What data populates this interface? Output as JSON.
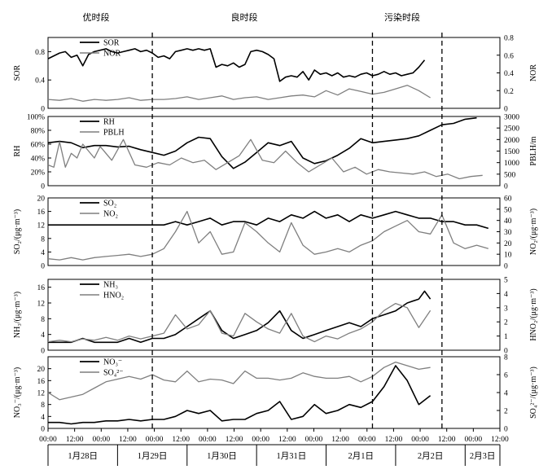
{
  "periods": [
    "优时段",
    "良时段",
    "污染时段"
  ],
  "x_axis": {
    "tick_labels": [
      "00:00",
      "12:00",
      "00:00",
      "12:00",
      "00:00",
      "12:00",
      "00:00",
      "12:00",
      "00:00",
      "12:00",
      "00:00",
      "12:00",
      "00:00",
      "12:00",
      "00:00",
      "12:00",
      "00:00",
      "12:00"
    ],
    "dates": [
      "1月28日",
      "1月29日",
      "1月30日",
      "1月31日",
      "2月1日",
      "2月2日",
      "2月3日"
    ]
  },
  "divider_lines_hours": [
    36,
    112,
    136
  ],
  "colors": {
    "series_dark": "#000000",
    "series_gray": "#7f7f7f",
    "frame": "#000000"
  },
  "chart_data": [
    {
      "type": "line",
      "x_unit": "hours since 2020-01-28 00:00",
      "left_ylabel": "SOR",
      "right_ylabel": "NOR",
      "left_ylim": [
        0,
        1.0
      ],
      "right_ylim": [
        0,
        0.8
      ],
      "left_ticks": [
        "0",
        "0.4",
        "0.8"
      ],
      "right_ticks": [
        "0",
        "0.2",
        "0.4",
        "0.6",
        "0.8"
      ],
      "legend": [
        "SOR",
        "NOR"
      ],
      "series": [
        {
          "name": "SOR",
          "axis": "left",
          "color": "#000000",
          "x": [
            0,
            2,
            4,
            6,
            8,
            10,
            12,
            14,
            16,
            18,
            20,
            22,
            24,
            26,
            28,
            30,
            32,
            34,
            36,
            38,
            40,
            42,
            44,
            46,
            48,
            50,
            52,
            54,
            56,
            58,
            60,
            62,
            64,
            66,
            68,
            70,
            72,
            74,
            76,
            78,
            80,
            82,
            84,
            86,
            88,
            90,
            92,
            94,
            96,
            98,
            100,
            102,
            104,
            106,
            108,
            110,
            112,
            114,
            116,
            118,
            120,
            122,
            124,
            126,
            128,
            130
          ],
          "y": [
            0.7,
            0.74,
            0.78,
            0.8,
            0.72,
            0.75,
            0.6,
            0.76,
            0.8,
            0.82,
            0.84,
            0.8,
            0.78,
            0.8,
            0.82,
            0.84,
            0.8,
            0.82,
            0.78,
            0.72,
            0.74,
            0.7,
            0.8,
            0.82,
            0.84,
            0.82,
            0.84,
            0.82,
            0.84,
            0.58,
            0.62,
            0.6,
            0.64,
            0.58,
            0.62,
            0.8,
            0.82,
            0.8,
            0.76,
            0.7,
            0.38,
            0.44,
            0.46,
            0.44,
            0.52,
            0.4,
            0.54,
            0.48,
            0.5,
            0.46,
            0.5,
            0.44,
            0.46,
            0.44,
            0.48,
            0.5,
            0.46,
            0.48,
            0.52,
            0.48,
            0.5,
            0.46,
            0.48,
            0.5,
            0.58,
            0.68
          ]
        },
        {
          "name": "NOR",
          "axis": "right",
          "color": "#7f7f7f",
          "x": [
            0,
            4,
            8,
            12,
            16,
            20,
            24,
            28,
            32,
            36,
            40,
            44,
            48,
            52,
            56,
            60,
            64,
            68,
            72,
            76,
            80,
            84,
            88,
            92,
            96,
            100,
            104,
            108,
            112,
            116,
            120,
            124,
            128,
            132
          ],
          "y": [
            0.1,
            0.09,
            0.11,
            0.08,
            0.1,
            0.09,
            0.1,
            0.12,
            0.09,
            0.1,
            0.1,
            0.11,
            0.13,
            0.1,
            0.12,
            0.14,
            0.1,
            0.12,
            0.13,
            0.1,
            0.12,
            0.14,
            0.15,
            0.13,
            0.2,
            0.15,
            0.22,
            0.19,
            0.16,
            0.18,
            0.22,
            0.26,
            0.2,
            0.12
          ]
        }
      ]
    },
    {
      "type": "line",
      "left_ylabel": "RH",
      "right_ylabel": "PBLH/m",
      "left_ylim": [
        0,
        100
      ],
      "right_ylim": [
        0,
        3000
      ],
      "left_ticks": [
        "0",
        "20%",
        "40%",
        "60%",
        "80%",
        "100%"
      ],
      "right_ticks": [
        "0",
        "500",
        "1000",
        "1500",
        "2000",
        "2500",
        "3000"
      ],
      "legend": [
        "RH",
        "PBLH"
      ],
      "series": [
        {
          "name": "RH",
          "axis": "left",
          "color": "#000000",
          "x": [
            0,
            4,
            8,
            12,
            16,
            20,
            24,
            28,
            32,
            36,
            40,
            44,
            48,
            52,
            56,
            60,
            64,
            68,
            72,
            76,
            80,
            84,
            88,
            92,
            96,
            100,
            104,
            108,
            112,
            116,
            120,
            124,
            128,
            132,
            136,
            140,
            144,
            148
          ],
          "y": [
            62,
            64,
            62,
            55,
            58,
            58,
            56,
            57,
            52,
            48,
            44,
            50,
            62,
            70,
            68,
            42,
            25,
            34,
            48,
            62,
            58,
            64,
            40,
            32,
            36,
            44,
            54,
            68,
            62,
            64,
            66,
            68,
            72,
            80,
            88,
            90,
            96,
            98
          ]
        },
        {
          "name": "PBLH",
          "axis": "right",
          "color": "#7f7f7f",
          "x": [
            0,
            2,
            4,
            6,
            8,
            10,
            12,
            14,
            16,
            18,
            22,
            26,
            30,
            34,
            38,
            42,
            46,
            50,
            54,
            58,
            62,
            66,
            70,
            74,
            78,
            82,
            86,
            90,
            94,
            98,
            102,
            106,
            110,
            114,
            118,
            122,
            126,
            130,
            134,
            138,
            142,
            146,
            150
          ],
          "y": [
            900,
            800,
            1900,
            800,
            1400,
            1200,
            1800,
            1500,
            1200,
            1700,
            1100,
            2000,
            900,
            800,
            1000,
            900,
            1200,
            1000,
            1100,
            700,
            1000,
            1300,
            2000,
            1100,
            1000,
            1500,
            1000,
            600,
            900,
            1200,
            600,
            800,
            500,
            700,
            600,
            550,
            500,
            600,
            400,
            500,
            300,
            400,
            450
          ]
        }
      ]
    },
    {
      "type": "line",
      "left_ylabel": "SO₂/(μg·m⁻³)",
      "right_ylabel": "NO₂/(μg·m⁻³)",
      "left_ylim": [
        0,
        20
      ],
      "right_ylim": [
        0,
        60
      ],
      "left_ticks": [
        "0",
        "4",
        "8",
        "12",
        "16",
        "20"
      ],
      "right_ticks": [
        "0",
        "10",
        "20",
        "30",
        "40",
        "50",
        "60"
      ],
      "legend": [
        "SO₂",
        "NO₂"
      ],
      "series": [
        {
          "name": "SO₂",
          "axis": "left",
          "color": "#000000",
          "x": [
            0,
            4,
            8,
            12,
            16,
            20,
            24,
            28,
            32,
            36,
            40,
            44,
            48,
            52,
            56,
            60,
            64,
            68,
            72,
            76,
            80,
            84,
            88,
            92,
            96,
            100,
            104,
            108,
            112,
            116,
            120,
            124,
            128,
            132,
            136,
            140,
            144,
            148,
            152
          ],
          "y": [
            12,
            12,
            12,
            12,
            12,
            12,
            12,
            12,
            12,
            12,
            12,
            13,
            12,
            13,
            14,
            12,
            13,
            13,
            12,
            14,
            13,
            15,
            14,
            16,
            14,
            15,
            13,
            15,
            14,
            15,
            16,
            15,
            14,
            14,
            13,
            13,
            12,
            12,
            11
          ]
        },
        {
          "name": "NO₂",
          "axis": "right",
          "color": "#7f7f7f",
          "x": [
            0,
            4,
            8,
            12,
            16,
            20,
            24,
            28,
            32,
            36,
            40,
            44,
            48,
            52,
            56,
            60,
            64,
            68,
            72,
            76,
            80,
            84,
            88,
            92,
            96,
            100,
            104,
            108,
            112,
            116,
            120,
            124,
            128,
            132,
            136,
            140,
            144,
            148,
            152
          ],
          "y": [
            6,
            5,
            7,
            5,
            7,
            8,
            9,
            10,
            8,
            10,
            15,
            30,
            48,
            20,
            30,
            10,
            12,
            38,
            30,
            20,
            12,
            38,
            18,
            10,
            12,
            15,
            12,
            18,
            22,
            30,
            35,
            40,
            30,
            28,
            45,
            20,
            15,
            18,
            15
          ]
        }
      ]
    },
    {
      "type": "line",
      "left_ylabel": "NH₃/(μg·m⁻³)",
      "right_ylabel": "HNO₂/(μg·m⁻³)",
      "left_ylim": [
        0,
        18
      ],
      "right_ylim": [
        0,
        5
      ],
      "left_ticks": [
        "0",
        "4",
        "8",
        "12",
        "16"
      ],
      "right_ticks": [
        "0",
        "1",
        "2",
        "3",
        "4",
        "5"
      ],
      "legend": [
        "NH₃",
        "HNO₂"
      ],
      "series": [
        {
          "name": "NH₃",
          "axis": "left",
          "color": "#000000",
          "x": [
            0,
            4,
            8,
            12,
            16,
            20,
            24,
            28,
            32,
            36,
            40,
            44,
            48,
            52,
            56,
            60,
            64,
            68,
            72,
            76,
            80,
            84,
            88,
            92,
            96,
            100,
            104,
            108,
            112,
            116,
            120,
            124,
            128,
            130,
            132
          ],
          "y": [
            2,
            2,
            2,
            3,
            2,
            2,
            2,
            3,
            2,
            3,
            3,
            4,
            6,
            8,
            10,
            5,
            3,
            4,
            5,
            7,
            10,
            5,
            3,
            4,
            5,
            6,
            7,
            6,
            8,
            9,
            10,
            12,
            13,
            15,
            13
          ]
        },
        {
          "name": "HNO₂",
          "axis": "right",
          "color": "#7f7f7f",
          "x": [
            0,
            4,
            8,
            12,
            16,
            20,
            24,
            28,
            32,
            36,
            40,
            44,
            48,
            52,
            56,
            60,
            64,
            68,
            72,
            76,
            80,
            84,
            88,
            92,
            96,
            100,
            104,
            108,
            112,
            116,
            120,
            124,
            128,
            132
          ],
          "y": [
            0.6,
            0.7,
            0.6,
            0.8,
            0.7,
            0.9,
            0.7,
            1.0,
            0.8,
            1.0,
            1.2,
            2.5,
            1.5,
            1.8,
            2.8,
            1.2,
            1.0,
            2.6,
            2.0,
            1.5,
            1.2,
            2.6,
            1.0,
            0.6,
            1.0,
            0.8,
            1.2,
            1.5,
            2.0,
            2.8,
            3.3,
            3.0,
            1.6,
            2.8
          ]
        }
      ]
    },
    {
      "type": "line",
      "left_ylabel": "NO₃⁻/(μg·m⁻³)",
      "right_ylabel": "SO₄²⁻/(μg·m⁻³)",
      "left_ylim": [
        0,
        24
      ],
      "right_ylim": [
        0,
        8
      ],
      "left_ticks": [
        "0",
        "4",
        "8",
        "12",
        "16",
        "20"
      ],
      "right_ticks": [
        "0",
        "2",
        "4",
        "6",
        "8"
      ],
      "legend": [
        "NO₃⁻",
        "SO₄²⁻"
      ],
      "series": [
        {
          "name": "NO₃⁻",
          "axis": "left",
          "color": "#000000",
          "x": [
            0,
            4,
            8,
            12,
            16,
            20,
            24,
            28,
            32,
            36,
            40,
            44,
            48,
            52,
            56,
            60,
            64,
            68,
            72,
            76,
            80,
            84,
            88,
            92,
            96,
            100,
            104,
            108,
            112,
            116,
            120,
            124,
            128,
            132
          ],
          "y": [
            2,
            2,
            1.5,
            2,
            2,
            2.5,
            2.5,
            3,
            2.5,
            3,
            3,
            4,
            6,
            5,
            6,
            2.5,
            3,
            3,
            5,
            6,
            9,
            3,
            4,
            8,
            5,
            6,
            8,
            7,
            9,
            14,
            21,
            16,
            8,
            11
          ]
        },
        {
          "name": "SO₄²⁻",
          "axis": "right",
          "color": "#7f7f7f",
          "x": [
            0,
            4,
            8,
            12,
            16,
            20,
            24,
            28,
            32,
            36,
            40,
            44,
            48,
            52,
            56,
            60,
            64,
            68,
            72,
            76,
            80,
            84,
            88,
            92,
            96,
            100,
            104,
            108,
            112,
            116,
            120,
            124,
            128,
            132
          ],
          "y": [
            4,
            3.2,
            3.5,
            3.8,
            4.5,
            5.2,
            5.5,
            5.8,
            5.5,
            6.0,
            5.4,
            5.2,
            6.4,
            5.2,
            5.5,
            5.4,
            5.0,
            6.4,
            5.6,
            5.6,
            5.4,
            5.6,
            6.2,
            5.8,
            5.6,
            5.6,
            5.8,
            5.2,
            5.8,
            6.8,
            7.4,
            7.0,
            6.6,
            6.8
          ]
        }
      ]
    }
  ]
}
